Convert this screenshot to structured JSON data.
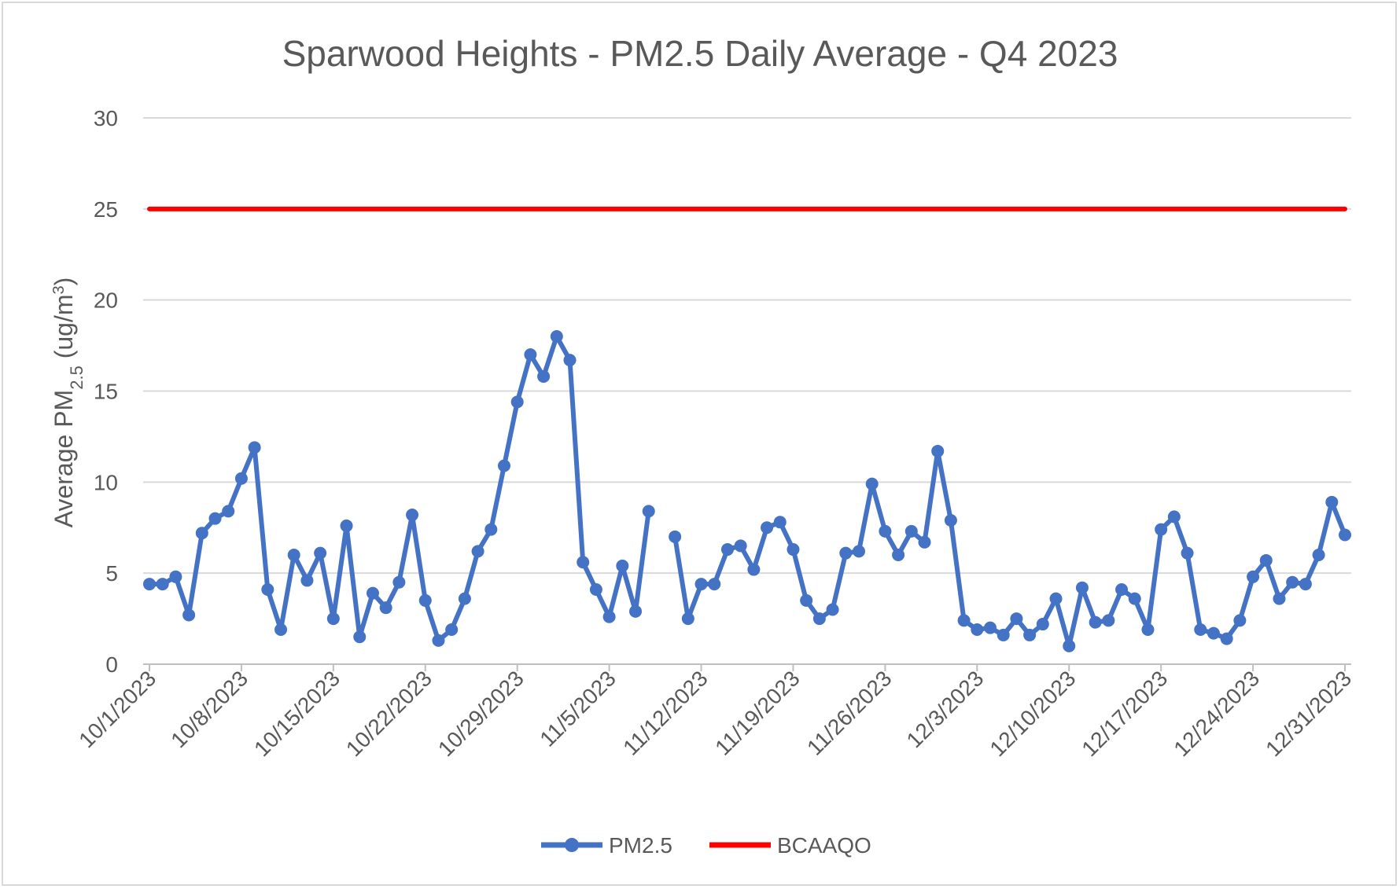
{
  "chart_data": {
    "type": "line",
    "title": "Sparwood Heights - PM2.5 Daily Average - Q4 2023",
    "xlabel": "",
    "ylabel": {
      "main": "Average PM",
      "sub": "2.5",
      "unit_pre": " (ug/m",
      "unit_sup": "3",
      "unit_post": ")"
    },
    "ylim": [
      0,
      30
    ],
    "yticks": [
      0,
      5,
      10,
      15,
      20,
      25,
      30
    ],
    "grid": true,
    "legend_position": "bottom",
    "x_tick_labels": [
      "10/1/2023",
      "10/8/2023",
      "10/15/2023",
      "10/22/2023",
      "10/29/2023",
      "11/5/2023",
      "11/12/2023",
      "11/19/2023",
      "11/26/2023",
      "12/3/2023",
      "12/10/2023",
      "12/17/2023",
      "12/24/2023",
      "12/31/2023"
    ],
    "x_start": "10/1/2023",
    "x_end": "12/31/2023",
    "series": [
      {
        "name": "PM2.5",
        "color": "#4472c4",
        "marker": "circle",
        "values": [
          4.4,
          4.4,
          4.8,
          2.7,
          7.2,
          8.0,
          8.4,
          10.2,
          11.9,
          4.1,
          1.9,
          6.0,
          4.6,
          6.1,
          2.5,
          7.6,
          1.5,
          3.9,
          3.1,
          4.5,
          8.2,
          3.5,
          1.3,
          1.9,
          3.6,
          6.2,
          7.4,
          10.9,
          14.4,
          17.0,
          15.8,
          18.0,
          16.7,
          5.6,
          4.1,
          2.6,
          5.4,
          2.9,
          8.4,
          null,
          7.0,
          2.5,
          4.4,
          4.4,
          6.3,
          6.5,
          5.2,
          7.5,
          7.8,
          6.3,
          3.5,
          2.5,
          3.0,
          6.1,
          6.2,
          9.9,
          7.3,
          6.0,
          7.3,
          6.7,
          11.7,
          7.9,
          2.4,
          1.9,
          2.0,
          1.6,
          2.5,
          1.6,
          2.2,
          3.6,
          1.0,
          4.2,
          2.3,
          2.4,
          4.1,
          3.6,
          1.9,
          7.4,
          8.1,
          6.1,
          1.9,
          1.7,
          1.4,
          2.4,
          4.8,
          5.7,
          3.6,
          4.5,
          4.4,
          6.0,
          8.9,
          7.1
        ]
      },
      {
        "name": "BCAAQO",
        "color": "#ff0000",
        "marker": "none",
        "values": [
          25,
          25
        ]
      }
    ]
  }
}
